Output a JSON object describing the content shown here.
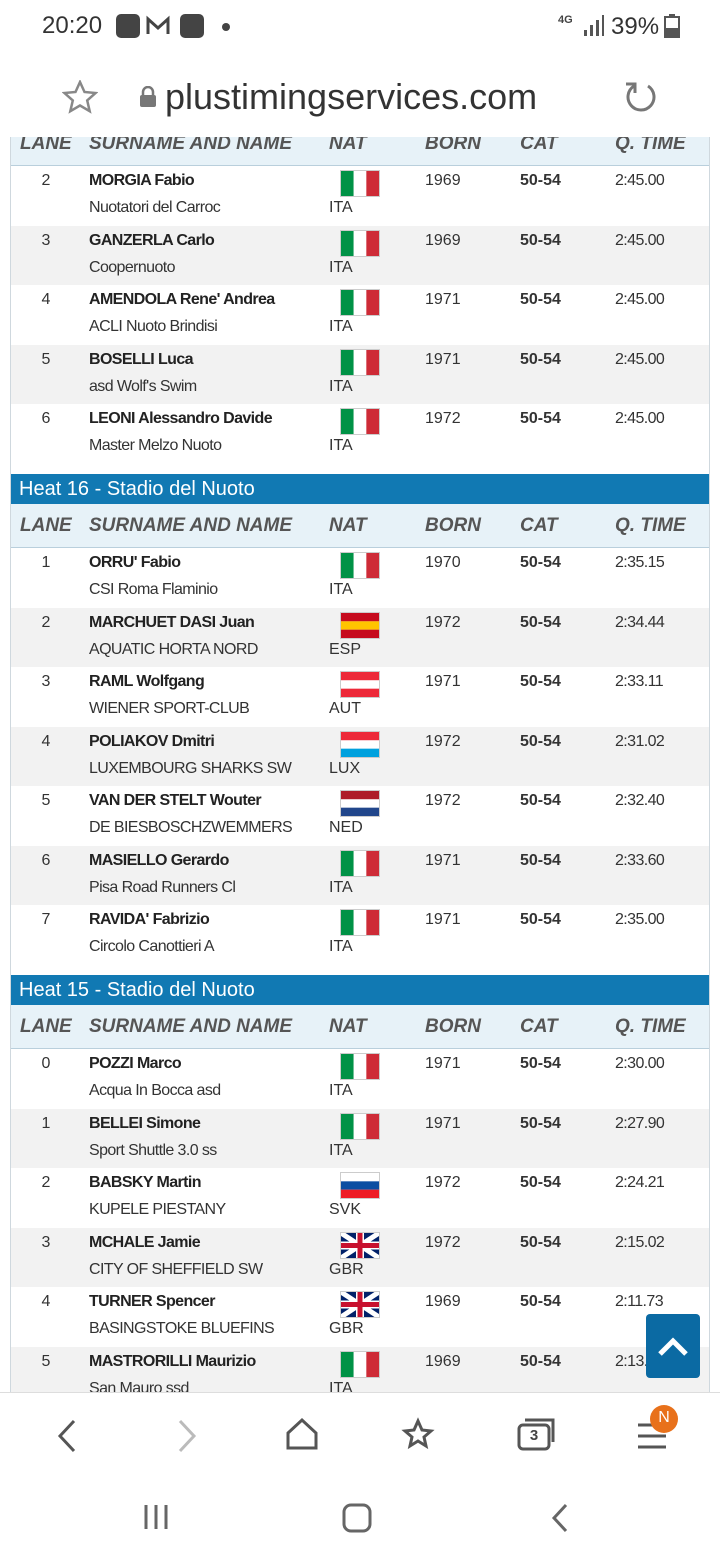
{
  "status_bar": {
    "time": "20:20",
    "network": "4G",
    "battery": "39%"
  },
  "address_bar": {
    "url": "plustimingservices.com"
  },
  "columns": [
    "LANE",
    "SURNAME AND NAME",
    "NAT",
    "BORN",
    "CAT",
    "Q. TIME"
  ],
  "flags": {
    "ITA": {
      "dir": "v",
      "colors": [
        "#009246",
        "#ffffff",
        "#ce2b37"
      ]
    },
    "ESP": {
      "dir": "h",
      "colors": [
        "#c60b1e",
        "#ffc400",
        "#c60b1e"
      ]
    },
    "AUT": {
      "dir": "h",
      "colors": [
        "#ed2939",
        "#ffffff",
        "#ed2939"
      ]
    },
    "LUX": {
      "dir": "h",
      "colors": [
        "#ed2939",
        "#ffffff",
        "#00a1de"
      ]
    },
    "NED": {
      "dir": "h",
      "colors": [
        "#ae1c28",
        "#ffffff",
        "#21468b"
      ]
    },
    "SVK": {
      "dir": "h",
      "colors": [
        "#ffffff",
        "#0b4ea2",
        "#ee1c25"
      ]
    },
    "GBR": {
      "dir": "cross",
      "colors": [
        "#012169",
        "#ffffff",
        "#c8102e"
      ]
    }
  },
  "sections": [
    {
      "rows": [
        [
          2,
          "MORGIA Fabio",
          "Nuotatori del Carroc",
          "ITA",
          1969,
          "50-54",
          "2:45.00"
        ],
        [
          3,
          "GANZERLA Carlo",
          "Coopernuoto",
          "ITA",
          1969,
          "50-54",
          "2:45.00"
        ],
        [
          4,
          "AMENDOLA Rene' Andrea",
          "ACLI Nuoto Brindisi",
          "ITA",
          1971,
          "50-54",
          "2:45.00"
        ],
        [
          5,
          "BOSELLI Luca",
          "asd Wolf's Swim",
          "ITA",
          1971,
          "50-54",
          "2:45.00"
        ],
        [
          6,
          "LEONI Alessandro Davide",
          "Master Melzo Nuoto",
          "ITA",
          1972,
          "50-54",
          "2:45.00"
        ]
      ]
    },
    {
      "title": "Heat 16 - Stadio del Nuoto",
      "rows": [
        [
          1,
          "ORRU' Fabio",
          "CSI Roma Flaminio",
          "ITA",
          1970,
          "50-54",
          "2:35.15"
        ],
        [
          2,
          "MARCHUET DASI Juan",
          "AQUATIC HORTA NORD",
          "ESP",
          1972,
          "50-54",
          "2:34.44"
        ],
        [
          3,
          "RAML Wolfgang",
          "WIENER SPORT-CLUB",
          "AUT",
          1971,
          "50-54",
          "2:33.11"
        ],
        [
          4,
          "POLIAKOV Dmitri",
          "LUXEMBOURG SHARKS SW",
          "LUX",
          1972,
          "50-54",
          "2:31.02"
        ],
        [
          5,
          "VAN DER STELT Wouter",
          "DE BIESBOSCHZWEMMERS",
          "NED",
          1972,
          "50-54",
          "2:32.40"
        ],
        [
          6,
          "MASIELLO Gerardo",
          "Pisa Road Runners Cl",
          "ITA",
          1971,
          "50-54",
          "2:33.60"
        ],
        [
          7,
          "RAVIDA' Fabrizio",
          "Circolo Canottieri A",
          "ITA",
          1971,
          "50-54",
          "2:35.00"
        ]
      ]
    },
    {
      "title": "Heat 15 - Stadio del Nuoto",
      "rows": [
        [
          0,
          "POZZI Marco",
          "Acqua In Bocca asd",
          "ITA",
          1971,
          "50-54",
          "2:30.00"
        ],
        [
          1,
          "BELLEI Simone",
          "Sport Shuttle 3.0 ss",
          "ITA",
          1971,
          "50-54",
          "2:27.90"
        ],
        [
          2,
          "BABSKY Martin",
          "KUPELE PIESTANY",
          "SVK",
          1972,
          "50-54",
          "2:24.21"
        ],
        [
          3,
          "MCHALE Jamie",
          "CITY OF SHEFFIELD SW",
          "GBR",
          1972,
          "50-54",
          "2:15.02"
        ],
        [
          4,
          "TURNER Spencer",
          "BASINGSTOKE BLUEFINS",
          "GBR",
          1969,
          "50-54",
          "2:11.73"
        ],
        [
          5,
          "MASTRORILLI Maurizio",
          "San Mauro ssd",
          "ITA",
          1969,
          "50-54",
          "2:13."
        ]
      ]
    }
  ],
  "browser_nav": {
    "tab_count": 3,
    "badge": "N"
  }
}
